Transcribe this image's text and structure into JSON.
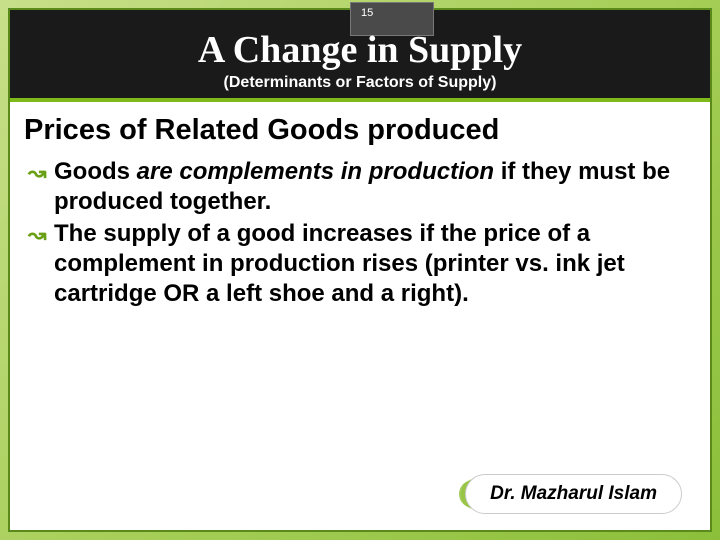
{
  "page_number": "15",
  "header": {
    "title": "A Change in Supply",
    "subtitle": "(Determinants or Factors of Supply)"
  },
  "section_heading": "Prices of Related Goods produced",
  "bullets": [
    {
      "lead": "Goods",
      "italic": " are complements in production",
      "tail": " if they must be produced together."
    },
    {
      "lead": "The",
      "italic": "",
      "tail": " supply of a good increases if the price of a complement in production rises (printer vs. ink jet cartridge OR a left shoe and a right)."
    }
  ],
  "footer": {
    "author": "Dr. Mazharul Islam"
  },
  "style": {
    "bg_gradient_start": "#c8df8a",
    "bg_gradient_end": "#8bbf3a",
    "header_bg": "#1a1a1a",
    "accent_color": "#7fb819",
    "bullet_color": "#6aa015",
    "title_fontsize": 38,
    "subtitle_fontsize": 16,
    "heading_fontsize": 29,
    "body_fontsize": 24,
    "footer_fontsize": 19
  }
}
